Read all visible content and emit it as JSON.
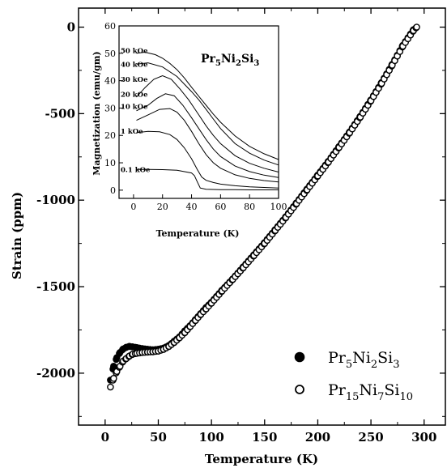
{
  "chart_data": [
    {
      "type": "scatter",
      "xlabel": "Temperature (K)",
      "ylabel": "Strain (ppm)",
      "xlim": [
        -25,
        320
      ],
      "ylim": [
        -2300,
        110
      ],
      "xticks": [
        "0",
        "50",
        "100",
        "150",
        "200",
        "250",
        "300"
      ],
      "yticks": [
        "0",
        "-500",
        "-1000",
        "-1500",
        "-2000"
      ],
      "legend": {
        "placement": "bottom-right",
        "entries": [
          {
            "base": "Pr",
            "s1": "5",
            "m1": "Ni",
            "s2": "2",
            "m2": "Si",
            "s3": "3",
            "marker": "filled circle"
          },
          {
            "base": "Pr",
            "s1": "15",
            "m1": "Ni",
            "s2": "7",
            "m2": "Si",
            "s3": "10",
            "marker": "open circle"
          }
        ]
      },
      "series": [
        {
          "name": "Pr5Ni2Si3",
          "marker": "filled",
          "x": [
            5,
            8,
            11,
            14,
            17,
            20,
            23,
            26,
            30,
            35,
            40,
            45,
            50,
            55,
            60,
            65,
            70,
            75,
            80,
            85,
            90,
            95,
            100,
            110,
            120,
            130,
            140,
            150,
            160,
            170,
            180,
            190,
            200,
            210,
            220,
            230,
            240,
            250,
            260,
            270,
            280,
            290
          ],
          "y": [
            -2040,
            -1960,
            -1910,
            -1880,
            -1860,
            -1850,
            -1845,
            -1848,
            -1852,
            -1858,
            -1862,
            -1865,
            -1862,
            -1855,
            -1840,
            -1815,
            -1790,
            -1755,
            -1725,
            -1690,
            -1655,
            -1620,
            -1590,
            -1520,
            -1455,
            -1385,
            -1315,
            -1245,
            -1170,
            -1095,
            -1015,
            -935,
            -855,
            -775,
            -690,
            -605,
            -515,
            -420,
            -320,
            -215,
            -105,
            -15
          ]
        },
        {
          "name": "Pr15Ni7Si10",
          "marker": "open",
          "x": [
            5,
            8,
            11,
            14,
            17,
            20,
            23,
            26,
            30,
            35,
            40,
            45,
            50,
            55,
            60,
            65,
            70,
            75,
            80,
            85,
            90,
            95,
            100,
            110,
            120,
            130,
            140,
            150,
            160,
            170,
            180,
            190,
            200,
            210,
            220,
            230,
            240,
            250,
            260,
            270,
            280,
            290,
            293
          ],
          "y": [
            -2080,
            -2030,
            -1990,
            -1960,
            -1930,
            -1915,
            -1900,
            -1890,
            -1885,
            -1880,
            -1878,
            -1876,
            -1872,
            -1862,
            -1845,
            -1822,
            -1795,
            -1765,
            -1730,
            -1695,
            -1660,
            -1628,
            -1595,
            -1525,
            -1458,
            -1390,
            -1320,
            -1250,
            -1175,
            -1100,
            -1020,
            -940,
            -860,
            -780,
            -695,
            -610,
            -520,
            -425,
            -325,
            -220,
            -110,
            -20,
            0
          ]
        }
      ]
    },
    {
      "type": "line",
      "title": {
        "base": "Pr",
        "s1": "5",
        "m1": "Ni",
        "s2": "2",
        "m2": "Si",
        "s3": "3"
      },
      "xlabel": "Temperature (K)",
      "ylabel": "Magnetization (emu/gm)",
      "xlim": [
        -10,
        100
      ],
      "ylim": [
        -3,
        60
      ],
      "xticks": [
        "0",
        "20",
        "40",
        "60",
        "80",
        "100"
      ],
      "yticks": [
        "0",
        "10",
        "20",
        "30",
        "40",
        "50",
        "60"
      ],
      "series": [
        {
          "name": "0.1 kOe",
          "x": [
            2,
            10,
            20,
            30,
            40,
            42,
            44,
            46,
            50,
            60,
            70,
            80,
            90,
            100
          ],
          "y": [
            7.6,
            7.6,
            7.5,
            7.3,
            6.3,
            5.3,
            3.0,
            0.8,
            0.3,
            0.2,
            0.15,
            0.1,
            0.1,
            0.1
          ]
        },
        {
          "name": "1 kOe",
          "x": [
            2,
            10,
            18,
            25,
            30,
            35,
            40,
            44,
            47,
            50,
            55,
            60,
            70,
            80,
            90,
            100
          ],
          "y": [
            21,
            21.5,
            21.3,
            20.3,
            18.5,
            15.5,
            11.5,
            7.5,
            4.8,
            3.6,
            2.8,
            2.2,
            1.6,
            1.2,
            1.0,
            0.8
          ]
        },
        {
          "name": "10 kOe",
          "x": [
            2,
            10,
            18,
            25,
            30,
            35,
            40,
            45,
            50,
            55,
            60,
            70,
            80,
            90,
            100
          ],
          "y": [
            25.5,
            27.5,
            29.5,
            29.8,
            28.5,
            25.5,
            21.5,
            17,
            13,
            10,
            8,
            5.6,
            4.3,
            3.5,
            3.0
          ]
        },
        {
          "name": "20 kOe",
          "x": [
            2,
            10,
            16,
            22,
            28,
            34,
            40,
            45,
            50,
            55,
            60,
            70,
            80,
            90,
            100
          ],
          "y": [
            29,
            31,
            33.5,
            35.2,
            34.5,
            31,
            26.5,
            22.5,
            18.5,
            15,
            12.3,
            8.8,
            6.8,
            5.5,
            4.6
          ]
        },
        {
          "name": "30 kOe",
          "x": [
            2,
            8,
            14,
            20,
            26,
            32,
            38,
            45,
            50,
            55,
            60,
            70,
            80,
            90,
            100
          ],
          "y": [
            34,
            37.5,
            40.5,
            41.8,
            40.5,
            37,
            33,
            27.5,
            23.5,
            20,
            17,
            12.6,
            9.8,
            8.0,
            6.6
          ]
        },
        {
          "name": "40 kOe",
          "x": [
            2,
            10,
            20,
            30,
            40,
            45,
            50,
            55,
            60,
            70,
            80,
            90,
            100
          ],
          "y": [
            46,
            46.5,
            45,
            41.5,
            36,
            33,
            29.5,
            26,
            22.5,
            17,
            13.5,
            11,
            9.2
          ]
        },
        {
          "name": "50 kOe",
          "x": [
            2,
            8,
            15,
            20,
            25,
            30,
            35,
            40,
            45,
            50,
            55,
            60,
            70,
            80,
            90,
            100
          ],
          "y": [
            50,
            50.4,
            49.5,
            48.2,
            46.3,
            44,
            41,
            37.6,
            34.3,
            31,
            27.8,
            24.8,
            19.8,
            16,
            13.3,
            11.2
          ]
        }
      ],
      "field_labels": [
        "50 kOe",
        "40 kOe",
        "30 kOe",
        "20 kOe",
        "10 kOe",
        "1 kOe",
        "0.1 kOe"
      ]
    }
  ]
}
